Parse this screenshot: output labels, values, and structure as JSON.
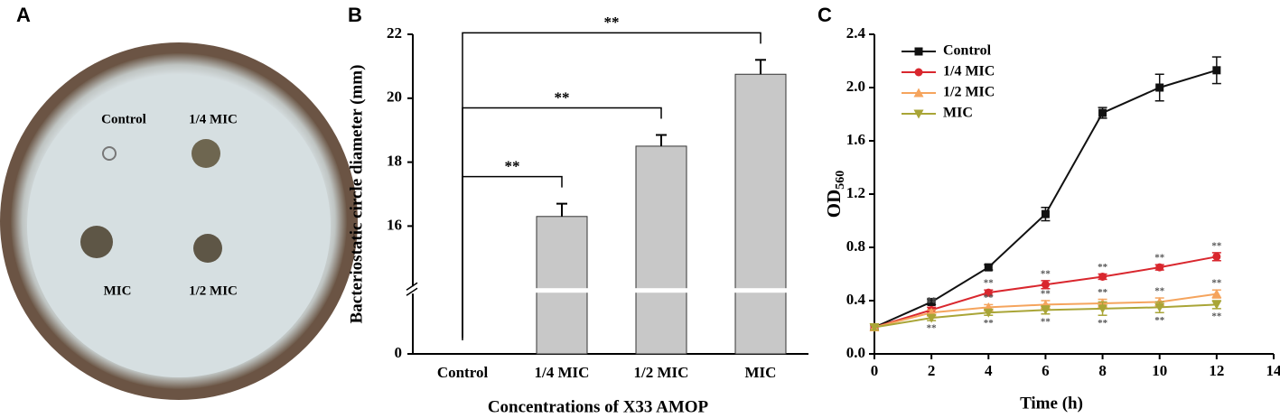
{
  "panels": [
    "A",
    "B",
    "C"
  ],
  "photo": {
    "labels": [
      "Control",
      "1/4 MIC",
      "MIC",
      "1/2 MIC"
    ]
  },
  "chart_data": [
    {
      "type": "bar",
      "x_label": "Concentrations of X33 AMOP",
      "y_label": "Bacteriostatic circle diameter (mm)",
      "categories": [
        "Control",
        "1/4 MIC",
        "1/2 MIC",
        "MIC"
      ],
      "values": [
        null,
        16.3,
        18.5,
        20.75
      ],
      "errors": [
        null,
        0.4,
        0.35,
        0.45
      ],
      "color": "#c8c8c8",
      "ylim": [
        0,
        22
      ],
      "ybreak": [
        2,
        14
      ],
      "yticks": [
        0,
        16,
        18,
        20,
        22
      ],
      "comparisons": [
        {
          "from": 0,
          "to": 1,
          "label": "**"
        },
        {
          "from": 0,
          "to": 2,
          "label": "**"
        },
        {
          "from": 0,
          "to": 3,
          "label": "**"
        }
      ]
    },
    {
      "type": "line",
      "x_label": "Time (h)",
      "y_label": "OD",
      "y_label_sub": "560",
      "x": [
        0,
        2,
        4,
        6,
        8,
        10,
        12
      ],
      "xlim": [
        0,
        14
      ],
      "xticks": [
        0,
        2,
        4,
        6,
        8,
        10,
        12,
        14
      ],
      "ylim": [
        0,
        2.4
      ],
      "yticks": [
        {
          "value": 0,
          "label": "0.0"
        },
        {
          "value": 0.4,
          "label": "0.4"
        },
        {
          "value": 0.8,
          "label": "0.8"
        },
        {
          "value": 1.2,
          "label": "1.2"
        },
        {
          "value": 1.6,
          "label": "1.6"
        },
        {
          "value": 2.0,
          "label": "2.0"
        },
        {
          "value": 2.4,
          "label": "2.4"
        }
      ],
      "legend": "top-left",
      "series": [
        {
          "name": "Control",
          "color": "#111111",
          "marker": "square",
          "values": [
            0.2,
            0.39,
            0.65,
            1.05,
            1.81,
            2.0,
            2.13
          ],
          "errors": [
            0.02,
            0.02,
            0.02,
            0.05,
            0.04,
            0.1,
            0.1
          ],
          "point_labels": [
            null,
            null,
            null,
            null,
            null,
            null,
            null
          ],
          "label_side": "above"
        },
        {
          "name": "1/4 MIC",
          "color": "#d9272e",
          "marker": "circle",
          "values": [
            0.2,
            0.33,
            0.46,
            0.52,
            0.58,
            0.65,
            0.73
          ],
          "errors": [
            0.02,
            0.02,
            0.02,
            0.03,
            0.02,
            0.02,
            0.03
          ],
          "point_labels": [
            null,
            "**",
            "**",
            "**",
            "**",
            "**",
            "**"
          ],
          "label_side": "above"
        },
        {
          "name": "1/2 MIC",
          "color": "#f5a45d",
          "marker": "triangle",
          "values": [
            0.2,
            0.31,
            0.35,
            0.37,
            0.38,
            0.39,
            0.45
          ],
          "errors": [
            0.02,
            0.02,
            0.02,
            0.03,
            0.03,
            0.03,
            0.03
          ],
          "point_labels": [
            null,
            "**",
            "**",
            "**",
            "**",
            "**",
            "**"
          ],
          "label_side": "above"
        },
        {
          "name": "MIC",
          "color": "#a9a537",
          "marker": "triangle-down",
          "values": [
            0.2,
            0.27,
            0.31,
            0.33,
            0.34,
            0.35,
            0.37
          ],
          "errors": [
            0.02,
            0.02,
            0.02,
            0.03,
            0.05,
            0.04,
            0.03
          ],
          "point_labels": [
            null,
            "**",
            "**",
            "**",
            "**",
            "**",
            "**"
          ],
          "label_side": "below"
        }
      ]
    }
  ]
}
